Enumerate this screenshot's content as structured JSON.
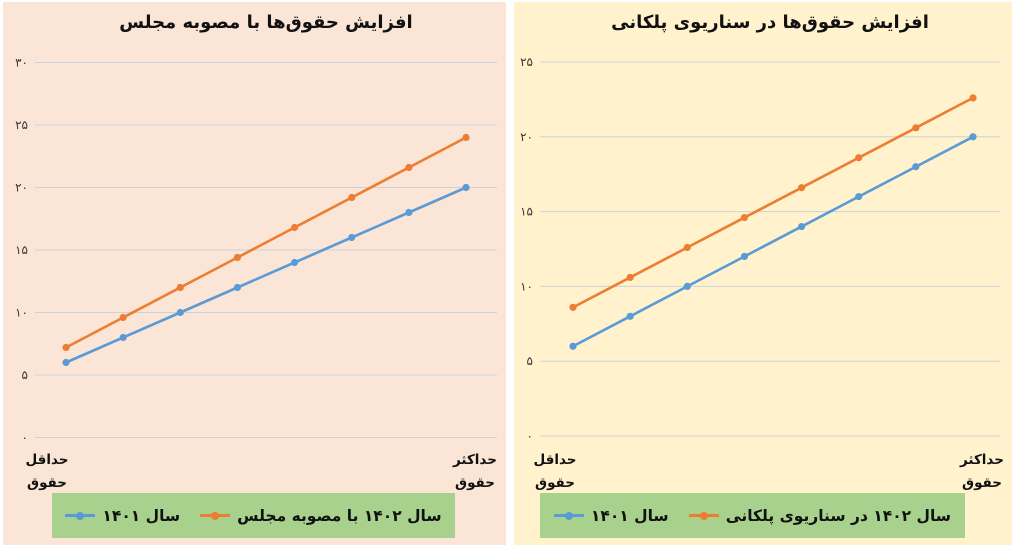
{
  "chart_data": [
    {
      "type": "line",
      "title": "افزایش حقوق‌ها با مصوبه مجلس",
      "categories": [
        "حداقل حقوق",
        "",
        "",
        "",
        "",
        "",
        "",
        "حداکثر حقوق"
      ],
      "x_min_label": [
        "حداقل",
        "حقوق"
      ],
      "x_max_label": [
        "حداکثر",
        "حقوق"
      ],
      "series": [
        {
          "name": "سال ۱۴۰۱",
          "color": "#5b9bd5",
          "values": [
            6,
            8,
            10,
            12,
            14,
            16,
            18,
            20
          ]
        },
        {
          "name": "سال ۱۴۰۲ با مصوبه مجلس",
          "color": "#ed7d31",
          "values": [
            7.2,
            9.6,
            12,
            14.4,
            16.8,
            19.2,
            21.6,
            24
          ]
        }
      ],
      "ylim": [
        0,
        30
      ],
      "yticks": [
        0,
        5,
        10,
        15,
        20,
        25,
        30
      ],
      "ytick_labels": [
        "۰",
        "۵",
        "۱۰",
        "۱۵",
        "۲۰",
        "۲۵",
        "۳۰"
      ],
      "grid": true,
      "legend_position": "bottom",
      "background": "#fbe5d6",
      "legend_background": "#a9d18e",
      "gridline_color": "#ccd2dc",
      "tick_color": "#3a3a3a"
    },
    {
      "type": "line",
      "title": "افزایش حقوق‌ها در سناریوی پلکانی",
      "categories": [
        "حداقل حقوق",
        "",
        "",
        "",
        "",
        "",
        "",
        "حداکثر حقوق"
      ],
      "x_min_label": [
        "حداقل",
        "حقوق"
      ],
      "x_max_label": [
        "حداکثر",
        "حقوق"
      ],
      "series": [
        {
          "name": "سال ۱۴۰۱",
          "color": "#5b9bd5",
          "values": [
            6,
            8,
            10,
            12,
            14,
            16,
            18,
            20
          ]
        },
        {
          "name": "سال ۱۴۰۲ در سناریوی پلکانی",
          "color": "#ed7d31",
          "values": [
            8.6,
            10.6,
            12.6,
            14.6,
            16.6,
            18.6,
            20.6,
            22.6
          ]
        }
      ],
      "ylim": [
        0,
        25
      ],
      "yticks": [
        0,
        5,
        10,
        15,
        20,
        25
      ],
      "ytick_labels": [
        "۰",
        "۵",
        "۱۰",
        "۱۵",
        "۲۰",
        "۲۵"
      ],
      "grid": true,
      "legend_position": "bottom",
      "background": "#fff2cc",
      "legend_background": "#a9d18e",
      "gridline_color": "#ccd2dc",
      "tick_color": "#3a3a3a"
    }
  ]
}
